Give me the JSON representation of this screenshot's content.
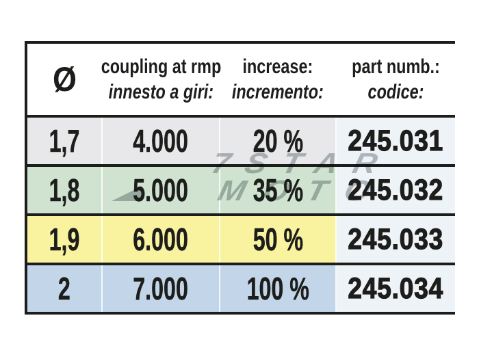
{
  "page": {
    "background": "#ffffff"
  },
  "table": {
    "header": {
      "diameter_symbol": "Ø",
      "coupling_en": "coupling at rmp",
      "coupling_it": "innesto a giri:",
      "increase_en": "increase:",
      "increase_it": "incremento:",
      "part_en": "part numb.:",
      "part_it": "codice:"
    },
    "rows": [
      {
        "diameter": "1,7",
        "coupling_rpm": "4.000",
        "increase": "20 %",
        "part_number": "245.031",
        "row_color": "#e8e8ea"
      },
      {
        "diameter": "1,8",
        "coupling_rpm": "5.000",
        "increase": "35 %",
        "part_number": "245.032",
        "row_color": "#cfe3d0"
      },
      {
        "diameter": "1,9",
        "coupling_rpm": "6.000",
        "increase": "50 %",
        "part_number": "245.033",
        "row_color": "#f9f3a0"
      },
      {
        "diameter": "2",
        "coupling_rpm": "7.000",
        "increase": "100 %",
        "part_number": "245.034",
        "row_color": "#c3d6e9"
      }
    ],
    "part_column_color": "#eef3f8",
    "border_color": "#1d1d1b",
    "text_color": "#1d1d1b"
  },
  "watermark": {
    "line1": "7STAR",
    "line2": "MOTO",
    "color": "#adb3b6"
  }
}
